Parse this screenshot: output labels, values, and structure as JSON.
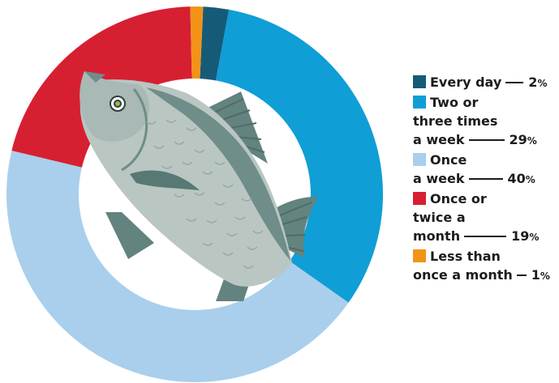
{
  "chart_data": {
    "type": "pie",
    "variant": "donut",
    "slices": [
      {
        "lines": [
          "Every day"
        ],
        "value": 2,
        "pct_label": "2",
        "color": "#155b78"
      },
      {
        "lines": [
          "Two or",
          "three times",
          "a week"
        ],
        "value": 29,
        "pct_label": "29",
        "color": "#0f9ed6"
      },
      {
        "lines": [
          "Once",
          "a week"
        ],
        "value": 40,
        "pct_label": "40",
        "color": "#a9cfec"
      },
      {
        "lines": [
          "Once or",
          "twice a",
          "month"
        ],
        "value": 19,
        "pct_label": "19",
        "color": "#d71f32"
      },
      {
        "lines": [
          "Less than",
          "once a month"
        ],
        "value": 1,
        "pct_label": "1",
        "color": "#f29318"
      }
    ],
    "percent_sign": "%",
    "legend_position": "right",
    "center_illustration": "fish-illustration"
  }
}
